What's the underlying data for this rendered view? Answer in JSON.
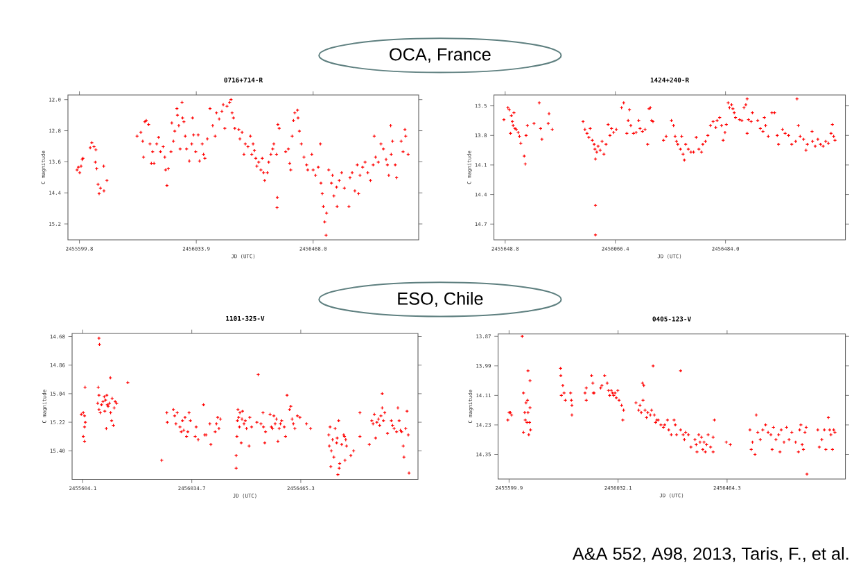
{
  "chart_data": [
    {
      "type": "scatter",
      "title": "0716+714-R",
      "xlabel": "JD (UTC)",
      "ylabel": "C magnitude",
      "color": "#ff0000",
      "marker": "cross",
      "xlim": [
        2455557.2,
        2456860.1
      ],
      "ylim": [
        15.61,
        11.88
      ],
      "xticks": [
        {
          "value": 2455599.8,
          "label": "2455599.8"
        },
        {
          "value": 2456033.9,
          "label": "2456033.9"
        },
        {
          "value": 2456468.0,
          "label": "2456468.0"
        }
      ],
      "yticks": [
        {
          "value": 12.0,
          "label": "12.0"
        },
        {
          "value": 12.8,
          "label": "12.8"
        },
        {
          "value": 13.6,
          "label": "13.6"
        },
        {
          "value": 14.4,
          "label": "14.4"
        },
        {
          "value": 15.2,
          "label": "15.2"
        }
      ],
      "annotations": [
        "OCA, France"
      ],
      "x": [
        2455591,
        2455596,
        2455601,
        2455606,
        2455610,
        2455613,
        2455640,
        2455646,
        2455654,
        2455661,
        2455659,
        2455664,
        2455669,
        2455673,
        2455678,
        2455691,
        2455690,
        2455702,
        2455814,
        2455828,
        2455835,
        2455838,
        2455843,
        2455848,
        2455857,
        2455862,
        2455867,
        2455872,
        2455877,
        2455887,
        2455894,
        2455901,
        2455911,
        2455917,
        2455920,
        2455925,
        2455930,
        2455940,
        2455943,
        2455949,
        2455954,
        2455962,
        2455964,
        2455969,
        2455974,
        2455981,
        2455983,
        2455988,
        2455993,
        2455998,
        2456008,
        2456017,
        2456020,
        2456024,
        2456032,
        2456041,
        2456046,
        2456056,
        2456061,
        2456066,
        2456075,
        2456085,
        2456095,
        2456104,
        2456109,
        2456119,
        2456129,
        2456134,
        2456140,
        2456148,
        2456158,
        2456163,
        2456167,
        2456172,
        2456177,
        2456192,
        2456196,
        2456204,
        2456211,
        2456216,
        2456226,
        2456235,
        2456240,
        2456245,
        2456250,
        2456255,
        2456259,
        2456266,
        2456274,
        2456279,
        2456284,
        2456288,
        2456298,
        2456303,
        2456311,
        2456318,
        2456322,
        2456332,
        2456337,
        2456342,
        2456335,
        2456334,
        2456366,
        2456376,
        2456381,
        2456385,
        2456390,
        2456395,
        2456400,
        2456410,
        2456412,
        2456417,
        2456424,
        2456434,
        2456444,
        2456448,
        2456463,
        2456468,
        2456477,
        2456487,
        2456495,
        2456497,
        2456502,
        2456506,
        2456511,
        2456518,
        2456516,
        2456526,
        2456536,
        2456540,
        2456545,
        2456555,
        2456557,
        2456565,
        2456574,
        2456584,
        2456601,
        2456605,
        2456613,
        2456623,
        2456632,
        2456637,
        2456642,
        2456652,
        2456661,
        2456671,
        2456681,
        2456691,
        2456695,
        2456700,
        2456710,
        2456720,
        2456729,
        2456739,
        2456744,
        2456749,
        2456756,
        2456758,
        2456763,
        2456773,
        2456778,
        2456795,
        2456802,
        2456809,
        2456812,
        2456821
      ],
      "values": [
        13.81,
        13.74,
        13.88,
        13.71,
        13.54,
        13.51,
        13.24,
        13.11,
        13.21,
        13.29,
        13.61,
        13.78,
        14.18,
        14.42,
        14.28,
        14.35,
        13.71,
        14.08,
        12.94,
        12.84,
        13.07,
        13.48,
        12.57,
        12.54,
        12.64,
        13.14,
        13.64,
        13.34,
        13.64,
        13.14,
        12.97,
        13.34,
        13.21,
        13.48,
        13.81,
        14.21,
        13.78,
        13.34,
        12.6,
        13.07,
        12.81,
        12.23,
        12.4,
        12.67,
        13.27,
        12.07,
        12.47,
        12.57,
        12.94,
        13.27,
        13.58,
        13.14,
        12.47,
        12.91,
        13.34,
        12.91,
        13.58,
        13.14,
        13.41,
        13.51,
        13.01,
        12.23,
        12.67,
        12.94,
        12.34,
        12.5,
        12.3,
        12.13,
        12.74,
        12.17,
        12.07,
        12.0,
        12.34,
        12.47,
        12.74,
        12.77,
        13.01,
        12.84,
        13.41,
        13.14,
        13.21,
        12.94,
        13.41,
        13.14,
        13.31,
        13.51,
        13.71,
        13.61,
        13.81,
        13.51,
        13.88,
        14.08,
        13.88,
        13.61,
        13.41,
        13.27,
        13.14,
        13.41,
        12.64,
        12.74,
        14.52,
        14.78,
        13.34,
        13.27,
        13.64,
        13.81,
        12.94,
        12.54,
        12.34,
        12.27,
        12.47,
        12.81,
        13.14,
        13.48,
        13.68,
        13.81,
        13.41,
        13.81,
        13.95,
        13.74,
        13.14,
        14.15,
        14.42,
        14.75,
        15.15,
        14.92,
        15.49,
        13.81,
        14.15,
        13.95,
        14.48,
        14.25,
        14.75,
        14.08,
        13.88,
        14.28,
        14.75,
        14.01,
        13.88,
        14.35,
        13.68,
        14.42,
        13.95,
        13.74,
        13.61,
        13.88,
        14.08,
        13.68,
        12.94,
        13.48,
        13.61,
        13.14,
        13.27,
        13.54,
        13.68,
        13.95,
        12.67,
        13.41,
        13.07,
        13.68,
        14.01,
        13.07,
        13.34,
        12.77,
        12.94,
        13.41
      ]
    },
    {
      "type": "scatter",
      "title": "1424+240-R",
      "xlabel": "JD (UTC)",
      "ylabel": "C magnitude",
      "color": "#ff0000",
      "marker": "cross",
      "xlim": [
        2455606.1,
        2456938.3
      ],
      "ylim": [
        14.86,
        13.39
      ],
      "xticks": [
        {
          "value": 2455648.8,
          "label": "2455648.8"
        },
        {
          "value": 2456066.4,
          "label": "2456066.4"
        },
        {
          "value": 2456484.0,
          "label": "2456484.0"
        }
      ],
      "yticks": [
        {
          "value": 13.5,
          "label": "13.5"
        },
        {
          "value": 13.8,
          "label": "13.8"
        },
        {
          "value": 14.1,
          "label": "14.1"
        },
        {
          "value": 14.4,
          "label": "14.4"
        },
        {
          "value": 14.7,
          "label": "14.7"
        }
      ],
      "x": [
        2455644,
        2455659,
        2455664,
        2455669,
        2455672,
        2455676,
        2455679,
        2455682,
        2455686,
        2455691,
        2455698,
        2455703,
        2455708,
        2455721,
        2455725,
        2455728,
        2455733,
        2455758,
        2455778,
        2455783,
        2455788,
        2455812,
        2455815,
        2455827,
        2455944,
        2455951,
        2455959,
        2455966,
        2455971,
        2455979,
        2455986,
        2455989,
        2455991,
        2455996,
        2456001,
        2456009,
        2456016,
        2456023,
        2456031,
        2456039,
        2456046,
        2456052,
        2456060,
        2456070,
        2456090,
        2456098,
        2456110,
        2456115,
        2456120,
        2456125,
        2456135,
        2456145,
        2456155,
        2456160,
        2456169,
        2456179,
        2456189,
        2456194,
        2456199,
        2456204,
        2456209,
        2456249,
        2456259,
        2456279,
        2456287,
        2456293,
        2456298,
        2456303,
        2456313,
        2456318,
        2456323,
        2456328,
        2456333,
        2456343,
        2456353,
        2456363,
        2456373,
        2456383,
        2456393,
        2456398,
        2456408,
        2456417,
        2456427,
        2456437,
        2456447,
        2456452,
        2456462,
        2456469,
        2456475,
        2456482,
        2456487,
        2456494,
        2456499,
        2456507,
        2456512,
        2456517,
        2456522,
        2456537,
        2456546,
        2456554,
        2456561,
        2456566,
        2456571,
        2456566,
        2456581,
        2456586,
        2456606,
        2456616,
        2456626,
        2456631,
        2456636,
        2456646,
        2456660,
        2456670,
        2456680,
        2456685,
        2456700,
        2456710,
        2456723,
        2456735,
        2456750,
        2456755,
        2456760,
        2456767,
        2456780,
        2456789,
        2456794,
        2456812,
        2456814,
        2456824,
        2456834,
        2456844,
        2456854,
        2456864,
        2456874,
        2456884,
        2456889,
        2456894,
        2456899,
        2455991,
        2455991
      ],
      "values": [
        13.64,
        13.52,
        13.54,
        13.78,
        13.6,
        13.66,
        13.7,
        13.57,
        13.73,
        13.74,
        13.77,
        13.81,
        13.88,
        14.01,
        14.09,
        13.8,
        13.7,
        13.68,
        13.47,
        13.73,
        13.84,
        13.68,
        13.58,
        13.74,
        13.66,
        13.74,
        13.78,
        13.82,
        13.73,
        13.85,
        13.89,
        13.94,
        14.04,
        13.97,
        13.91,
        13.95,
        13.86,
        13.99,
        13.89,
        13.69,
        13.8,
        13.73,
        13.77,
        13.74,
        13.52,
        13.47,
        13.78,
        13.65,
        13.54,
        13.7,
        13.78,
        13.77,
        13.65,
        13.73,
        13.76,
        13.74,
        13.89,
        13.53,
        13.52,
        13.65,
        13.66,
        13.85,
        13.81,
        13.65,
        13.7,
        13.81,
        13.86,
        13.89,
        13.94,
        13.81,
        13.99,
        14.05,
        13.89,
        13.94,
        13.97,
        13.97,
        13.82,
        13.94,
        13.97,
        13.89,
        13.86,
        13.8,
        13.7,
        13.66,
        13.72,
        13.65,
        13.62,
        13.7,
        13.85,
        13.77,
        13.69,
        13.47,
        13.52,
        13.49,
        13.53,
        13.57,
        13.62,
        13.64,
        13.65,
        13.52,
        13.49,
        13.43,
        13.64,
        13.78,
        13.66,
        13.57,
        13.65,
        13.73,
        13.76,
        13.62,
        13.7,
        13.81,
        13.57,
        13.57,
        13.8,
        13.89,
        13.74,
        13.78,
        13.8,
        13.89,
        13.86,
        13.43,
        13.7,
        13.81,
        13.84,
        13.95,
        13.89,
        13.76,
        13.86,
        13.91,
        13.84,
        13.89,
        13.91,
        13.86,
        13.88,
        13.78,
        13.69,
        13.81,
        13.85,
        14.51,
        14.81
      ]
    },
    {
      "type": "scatter",
      "title": "1101-325-V",
      "xlabel": "JD (UTC)",
      "ylabel": "C magnitude",
      "color": "#ff0000",
      "marker": "cross",
      "xlim": [
        2455561.8,
        2456928.4
      ],
      "ylim": [
        15.58,
        14.66
      ],
      "xticks": [
        {
          "value": 2455604.1,
          "label": "2455604.1"
        },
        {
          "value": 2456034.7,
          "label": "2456034.7"
        },
        {
          "value": 2456465.3,
          "label": "2456465.3"
        }
      ],
      "yticks": [
        {
          "value": 14.68,
          "label": "14.68"
        },
        {
          "value": 14.86,
          "label": "14.86"
        },
        {
          "value": 15.04,
          "label": "15.04"
        },
        {
          "value": 15.22,
          "label": "15.22"
        },
        {
          "value": 15.4,
          "label": "15.40"
        }
      ],
      "annotations": [
        "ESO, Chile"
      ],
      "x": [
        2455598,
        2455606,
        2455611,
        2455614,
        2455611,
        2455606,
        2455611,
        2455613,
        2455668,
        2455670,
        2455665,
        2455668,
        2455663,
        2455668,
        2455673,
        2455678,
        2455684,
        2455689,
        2455691,
        2455694,
        2455697,
        2455699,
        2455701,
        2455704,
        2455709,
        2455714,
        2455713,
        2455718,
        2455720,
        2455725,
        2455728,
        2455732,
        2455738,
        2455782,
        2455916,
        2455936,
        2455938,
        2455962,
        2455967,
        2455972,
        2455977,
        2455988,
        2455993,
        2455998,
        2456003,
        2456008,
        2456014,
        2456019,
        2456024,
        2456029,
        2456048,
        2456052,
        2456060,
        2456081,
        2456086,
        2456091,
        2456106,
        2456110,
        2456127,
        2456132,
        2456137,
        2456142,
        2456148,
        2456210,
        2456210,
        2456213,
        2456215,
        2456217,
        2456220,
        2456223,
        2456225,
        2456230,
        2456233,
        2456235,
        2456241,
        2456246,
        2456251,
        2456261,
        2456264,
        2456271,
        2456292,
        2456297,
        2456308,
        2456316,
        2456318,
        2456323,
        2456326,
        2456344,
        2456349,
        2456354,
        2456359,
        2456364,
        2456369,
        2456375,
        2456380,
        2456385,
        2456390,
        2456400,
        2456405,
        2456411,
        2456421,
        2456426,
        2456431,
        2456436,
        2456442,
        2456452,
        2456462,
        2456488,
        2456504,
        2456576,
        2456578,
        2456581,
        2456584,
        2456586,
        2456591,
        2456596,
        2456601,
        2456607,
        2456609,
        2456612,
        2456615,
        2456617,
        2456619,
        2456627,
        2456635,
        2456638,
        2456640,
        2456643,
        2456646,
        2456663,
        2456674,
        2456699,
        2456699,
        2456736,
        2456746,
        2456751,
        2456756,
        2456761,
        2456766,
        2456772,
        2456777,
        2456782,
        2456787,
        2456787,
        2456792,
        2456797,
        2456808,
        2456823,
        2456828,
        2456834,
        2456844,
        2456849,
        2456854,
        2456859,
        2456864,
        2456870,
        2456873,
        2456880,
        2456885,
        2456890,
        2456893
      ],
      "values": [
        15.17,
        15.16,
        15.18,
        15.22,
        15.25,
        15.31,
        15.34,
        15.0,
        14.69,
        14.73,
        15.0,
        15.05,
        15.1,
        15.14,
        15.16,
        15.11,
        15.09,
        15.06,
        15.15,
        15.08,
        15.26,
        15.05,
        15.11,
        15.12,
        15.1,
        15.16,
        14.94,
        15.21,
        15.07,
        15.24,
        15.13,
        15.09,
        15.1,
        14.97,
        15.46,
        15.16,
        15.22,
        15.14,
        15.18,
        15.23,
        15.16,
        15.25,
        15.28,
        15.21,
        15.27,
        15.19,
        15.31,
        15.28,
        15.16,
        15.21,
        15.31,
        15.25,
        15.33,
        15.11,
        15.3,
        15.3,
        15.23,
        15.36,
        15.28,
        15.23,
        15.19,
        15.26,
        15.2,
        15.43,
        15.51,
        15.31,
        15.21,
        15.14,
        15.19,
        15.25,
        15.16,
        15.35,
        15.2,
        15.15,
        15.23,
        15.21,
        15.26,
        15.37,
        15.19,
        15.25,
        15.22,
        14.92,
        15.23,
        15.16,
        15.25,
        15.35,
        15.28,
        15.17,
        15.25,
        15.26,
        15.18,
        15.23,
        15.2,
        15.34,
        15.26,
        15.23,
        15.21,
        15.25,
        15.31,
        15.05,
        15.14,
        15.12,
        15.2,
        15.23,
        15.26,
        15.18,
        15.19,
        15.23,
        15.26,
        15.3,
        15.37,
        15.25,
        15.5,
        15.4,
        15.33,
        15.44,
        15.26,
        15.35,
        15.32,
        15.55,
        15.21,
        15.51,
        15.48,
        15.36,
        15.3,
        15.31,
        15.46,
        15.33,
        15.37,
        15.43,
        15.4,
        15.16,
        15.31,
        15.36,
        15.21,
        15.23,
        15.17,
        15.32,
        15.22,
        15.2,
        15.24,
        15.18,
        15.04,
        15.13,
        15.21,
        15.16,
        15.29,
        15.21,
        15.24,
        15.26,
        15.28,
        15.13,
        15.21,
        15.27,
        15.28,
        15.37,
        15.44,
        15.26,
        15.15,
        15.3,
        15.54
      ]
    },
    {
      "type": "scatter",
      "title": "0405-123-V",
      "xlabel": "JD (UTC)",
      "ylabel": "C magnitude",
      "color": "#ff0000",
      "marker": "cross",
      "xlim": [
        2455556.3,
        2456933.3
      ],
      "ylim": [
        14.45,
        13.86
      ],
      "xticks": [
        {
          "value": 2455599.9,
          "label": "2455599.9"
        },
        {
          "value": 2456032.1,
          "label": "2456032.1"
        },
        {
          "value": 2456464.3,
          "label": "2456464.3"
        }
      ],
      "yticks": [
        {
          "value": 13.87,
          "label": "13.87"
        },
        {
          "value": 13.99,
          "label": "13.99"
        },
        {
          "value": 14.11,
          "label": "14.11"
        },
        {
          "value": 14.23,
          "label": "14.23"
        },
        {
          "value": 14.35,
          "label": "14.35"
        }
      ],
      "annotations": [
        "A&A 552, A98, 2013, Taris, F., et al."
      ],
      "x": [
        2455595,
        2455600,
        2455605,
        2455610,
        2455652,
        2455657,
        2455657,
        2455662,
        2455664,
        2455667,
        2455671,
        2455673,
        2455675,
        2455675,
        2455678,
        2455681,
        2455683,
        2455683,
        2455685,
        2455804,
        2455805,
        2455807,
        2455813,
        2455818,
        2455823,
        2455844,
        2455847,
        2455849,
        2455849,
        2455901,
        2455906,
        2455906,
        2455927,
        2455932,
        2455934,
        2455937,
        2455963,
        2455968,
        2455979,
        2455989,
        2455994,
        2455999,
        2456005,
        2456010,
        2456015,
        2456020,
        2456025,
        2456031,
        2456036,
        2456046,
        2456051,
        2456054,
        2456103,
        2456114,
        2456119,
        2456124,
        2456129,
        2456131,
        2456134,
        2456139,
        2456145,
        2456150,
        2456160,
        2456165,
        2456171,
        2456176,
        2456181,
        2456186,
        2456191,
        2456202,
        2456212,
        2456217,
        2456228,
        2456233,
        2456243,
        2456254,
        2456259,
        2456264,
        2456280,
        2456280,
        2456290,
        2456295,
        2456300,
        2456311,
        2456321,
        2456337,
        2456342,
        2456345,
        2456352,
        2456357,
        2456363,
        2456368,
        2456373,
        2456378,
        2456383,
        2456389,
        2456399,
        2456409,
        2456414,
        2456409,
        2456461,
        2456477,
        2456555,
        2456560,
        2456565,
        2456575,
        2456580,
        2456586,
        2456596,
        2456606,
        2456617,
        2456627,
        2456638,
        2456643,
        2456648,
        2456658,
        2456669,
        2456674,
        2456679,
        2456690,
        2456700,
        2456710,
        2456721,
        2456736,
        2456747,
        2456752,
        2456757,
        2456762,
        2456767,
        2456773,
        2456778,
        2456781,
        2456824,
        2456830,
        2456840,
        2456850,
        2456856,
        2456866,
        2456871,
        2456876,
        2456882,
        2456887,
        2456892
      ],
      "values": [
        14.21,
        14.18,
        14.18,
        14.19,
        13.87,
        14.26,
        14.1,
        14.18,
        14.21,
        14.14,
        14.22,
        14.13,
        14.01,
        14.18,
        14.27,
        14.22,
        14.05,
        14.16,
        14.25,
        14.0,
        14.03,
        14.11,
        14.07,
        14.1,
        14.13,
        14.1,
        14.13,
        14.15,
        14.19,
        14.1,
        14.08,
        14.13,
        14.03,
        14.06,
        14.1,
        14.1,
        14.08,
        14.07,
        14.03,
        14.06,
        14.09,
        14.11,
        14.09,
        14.1,
        14.11,
        14.1,
        14.12,
        14.09,
        14.13,
        14.15,
        14.21,
        14.17,
        14.14,
        14.17,
        14.15,
        14.18,
        14.06,
        14.13,
        14.07,
        14.17,
        14.2,
        14.18,
        14.19,
        14.17,
        13.99,
        14.19,
        14.22,
        14.21,
        14.21,
        14.23,
        14.24,
        14.23,
        14.21,
        14.25,
        14.27,
        14.21,
        14.23,
        14.27,
        14.01,
        14.25,
        14.27,
        14.29,
        14.26,
        14.27,
        14.32,
        14.29,
        14.31,
        14.34,
        14.27,
        14.3,
        14.28,
        14.33,
        14.3,
        14.34,
        14.31,
        14.27,
        14.32,
        14.34,
        14.21,
        14.28,
        14.3,
        14.31,
        14.25,
        14.33,
        14.3,
        14.35,
        14.19,
        14.26,
        14.29,
        14.25,
        14.23,
        14.26,
        14.27,
        14.33,
        14.24,
        14.29,
        14.27,
        14.34,
        14.25,
        14.3,
        14.24,
        14.29,
        14.26,
        14.3,
        14.34,
        14.25,
        14.23,
        14.31,
        14.33,
        14.26,
        14.24,
        14.43,
        14.25,
        14.32,
        14.29,
        14.25,
        14.33,
        14.2,
        14.25,
        14.27,
        14.33,
        14.25,
        14.26
      ]
    }
  ]
}
